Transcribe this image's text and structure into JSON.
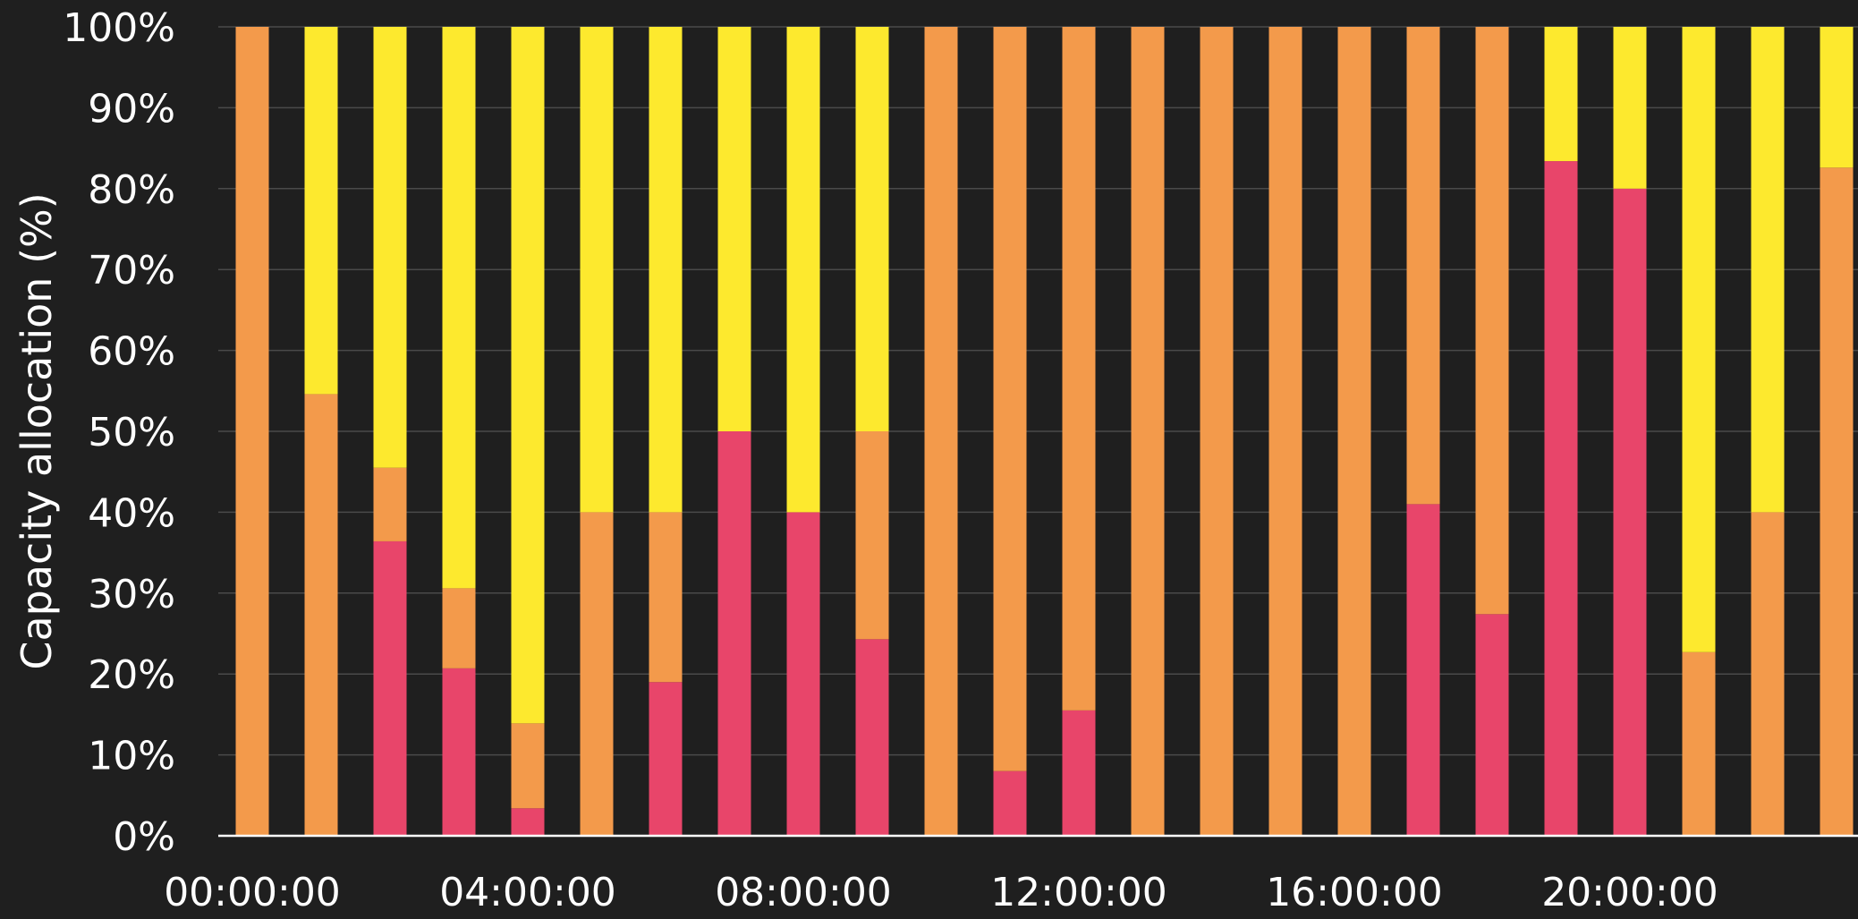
{
  "chart_data": {
    "type": "bar",
    "stacked": true,
    "normalized": true,
    "ylabel": "Capacity allocation (%)",
    "xlabel": "",
    "ylim": [
      0,
      100
    ],
    "yticks": [
      "0%",
      "10%",
      "20%",
      "30%",
      "40%",
      "50%",
      "60%",
      "70%",
      "80%",
      "90%",
      "100%"
    ],
    "xtick_labels": [
      "00:00:00",
      "04:00:00",
      "08:00:00",
      "12:00:00",
      "16:00:00",
      "20:00:00"
    ],
    "categories": [
      "00:00:00",
      "01:00:00",
      "02:00:00",
      "03:00:00",
      "04:00:00",
      "05:00:00",
      "06:00:00",
      "07:00:00",
      "08:00:00",
      "09:00:00",
      "10:00:00",
      "11:00:00",
      "12:00:00",
      "13:00:00",
      "14:00:00",
      "15:00:00",
      "16:00:00",
      "17:00:00",
      "18:00:00",
      "19:00:00",
      "20:00:00",
      "21:00:00",
      "22:00:00",
      "23:00:00"
    ],
    "grid": true,
    "legend": "none",
    "series": [
      {
        "color": "#e8456a",
        "values": [
          0,
          0,
          36.4,
          20.7,
          3.4,
          0,
          19,
          50,
          40,
          24.3,
          0,
          8,
          15.5,
          0,
          0,
          0,
          0,
          41,
          27.4,
          83.4,
          80,
          0,
          0,
          0
        ]
      },
      {
        "color": "#f39a4b",
        "values": [
          100,
          54.6,
          9.1,
          9.9,
          10.5,
          40,
          21,
          0,
          0,
          25.7,
          100,
          92,
          84.5,
          100,
          100,
          100,
          100,
          59,
          72.6,
          0,
          0,
          22.7,
          40,
          82.6
        ]
      },
      {
        "color": "#fde92e",
        "values": [
          0,
          45.4,
          54.5,
          69.4,
          86.1,
          60,
          60,
          50,
          60,
          50,
          0,
          0,
          0,
          0,
          0,
          0,
          0,
          0,
          0,
          16.6,
          20,
          77.3,
          60,
          17.4
        ]
      }
    ]
  },
  "colors": {
    "background": "#1f1f1f",
    "grid": "#4a4a4a",
    "axis": "#ffffff",
    "text": "#ffffff"
  }
}
